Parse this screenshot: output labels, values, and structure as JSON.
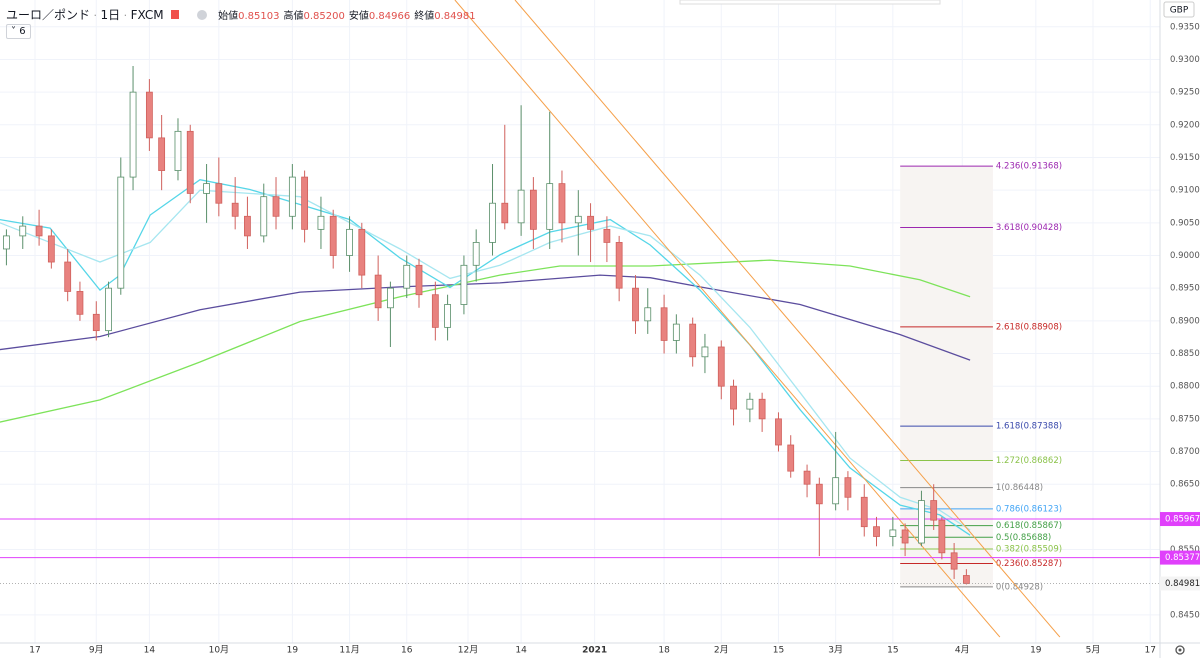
{
  "header": {
    "symbol": "ユーロ／ポンド",
    "interval": "1日",
    "exchange": "FXCM",
    "ohlc": [
      {
        "label": "始値",
        "value": "0.85103"
      },
      {
        "label": "高値",
        "value": "0.85200"
      },
      {
        "label": "安値",
        "value": "0.84966"
      },
      {
        "label": "終値",
        "value": "0.84981"
      }
    ],
    "indicators_count": "6"
  },
  "chart_data": {
    "type": "candlestick",
    "currency": "GBP",
    "xlim": [
      -8.57,
      275.4
    ],
    "ylim": [
      0.8407,
      0.9391
    ],
    "xticks": [
      {
        "value": 0,
        "label": "17"
      },
      {
        "value": 15,
        "label": "9月"
      },
      {
        "value": 28,
        "label": "14"
      },
      {
        "value": 45,
        "label": "10月"
      },
      {
        "value": 63,
        "label": "19"
      },
      {
        "value": 77,
        "label": "11月"
      },
      {
        "value": 91,
        "label": "16"
      },
      {
        "value": 106,
        "label": "12月"
      },
      {
        "value": 119,
        "label": "14"
      },
      {
        "value": 137,
        "label": "2021"
      },
      {
        "value": 154,
        "label": "18"
      },
      {
        "value": 168,
        "label": "2月"
      },
      {
        "value": 182,
        "label": "15"
      },
      {
        "value": 196,
        "label": "3月"
      },
      {
        "value": 210,
        "label": "15"
      },
      {
        "value": 227,
        "label": "4月"
      },
      {
        "value": 245,
        "label": "19"
      },
      {
        "value": 259,
        "label": "5月"
      },
      {
        "value": 273,
        "label": "17"
      }
    ],
    "yticks": [
      {
        "value": 0.935,
        "label": "0.93500"
      },
      {
        "value": 0.93,
        "label": "0.93000"
      },
      {
        "value": 0.925,
        "label": "0.92500"
      },
      {
        "value": 0.92,
        "label": "0.92000"
      },
      {
        "value": 0.915,
        "label": "0.91500"
      },
      {
        "value": 0.91,
        "label": "0.91000"
      },
      {
        "value": 0.905,
        "label": "0.90500"
      },
      {
        "value": 0.9,
        "label": "0.90000"
      },
      {
        "value": 0.895,
        "label": "0.89500"
      },
      {
        "value": 0.89,
        "label": "0.89000"
      },
      {
        "value": 0.885,
        "label": "0.88500"
      },
      {
        "value": 0.88,
        "label": "0.88000"
      },
      {
        "value": 0.875,
        "label": "0.87500"
      },
      {
        "value": 0.87,
        "label": "0.87000"
      },
      {
        "value": 0.865,
        "label": "0.86500"
      },
      {
        "value": 0.855,
        "label": "0.85500"
      },
      {
        "value": 0.845,
        "label": "0.84500"
      }
    ],
    "up_color": "#ffffff",
    "up_border": "#5a8f6a",
    "down_color": "#e8827f",
    "down_border": "#d0605c",
    "candles": {
      "x": [
        -7,
        -3,
        1,
        4,
        8,
        11,
        15,
        18,
        21,
        24,
        28,
        31,
        35,
        38,
        42,
        45,
        49,
        52,
        56,
        59,
        63,
        66,
        70,
        73,
        77,
        80,
        84,
        87,
        91,
        94,
        98,
        101,
        105,
        108,
        112,
        115,
        119,
        122,
        126,
        129,
        133,
        136,
        140,
        143,
        147,
        150,
        154,
        157,
        161,
        164,
        168,
        171,
        175,
        178,
        182,
        185,
        189,
        192,
        196,
        199,
        203,
        206,
        210,
        213,
        217,
        220,
        222,
        225,
        228
      ],
      "open": [
        0.901,
        0.903,
        0.9045,
        0.903,
        0.899,
        0.8945,
        0.891,
        0.8885,
        0.895,
        0.912,
        0.925,
        0.918,
        0.913,
        0.919,
        0.9095,
        0.911,
        0.908,
        0.906,
        0.903,
        0.909,
        0.906,
        0.912,
        0.904,
        0.906,
        0.9,
        0.904,
        0.897,
        0.892,
        0.895,
        0.8985,
        0.894,
        0.889,
        0.8925,
        0.8985,
        0.902,
        0.908,
        0.905,
        0.91,
        0.904,
        0.911,
        0.905,
        0.906,
        0.904,
        0.902,
        0.895,
        0.89,
        0.892,
        0.887,
        0.8895,
        0.8845,
        0.886,
        0.88,
        0.8765,
        0.878,
        0.875,
        0.871,
        0.867,
        0.865,
        0.862,
        0.866,
        0.863,
        0.8585,
        0.857,
        0.858,
        0.856,
        0.8625,
        0.8595,
        0.8545,
        0.85103
      ],
      "high": [
        0.904,
        0.906,
        0.907,
        0.904,
        0.901,
        0.896,
        0.893,
        0.896,
        0.915,
        0.929,
        0.927,
        0.9215,
        0.921,
        0.92,
        0.914,
        0.915,
        0.912,
        0.909,
        0.911,
        0.912,
        0.914,
        0.913,
        0.909,
        0.907,
        0.906,
        0.905,
        0.9,
        0.896,
        0.9,
        0.8995,
        0.896,
        0.894,
        0.9,
        0.904,
        0.914,
        0.92,
        0.923,
        0.912,
        0.922,
        0.913,
        0.91,
        0.908,
        0.906,
        0.903,
        0.897,
        0.895,
        0.894,
        0.891,
        0.8905,
        0.888,
        0.887,
        0.881,
        0.879,
        0.879,
        0.876,
        0.8725,
        0.868,
        0.866,
        0.873,
        0.867,
        0.865,
        0.86,
        0.86,
        0.859,
        0.864,
        0.865,
        0.86,
        0.856,
        0.852
      ],
      "low": [
        0.8985,
        0.901,
        0.9015,
        0.898,
        0.893,
        0.89,
        0.887,
        0.8875,
        0.894,
        0.91,
        0.916,
        0.91,
        0.9115,
        0.908,
        0.905,
        0.906,
        0.904,
        0.901,
        0.902,
        0.904,
        0.904,
        0.902,
        0.901,
        0.898,
        0.8975,
        0.895,
        0.89,
        0.886,
        0.8935,
        0.892,
        0.887,
        0.887,
        0.891,
        0.896,
        0.9,
        0.904,
        0.903,
        0.901,
        0.901,
        0.902,
        0.9,
        0.899,
        0.899,
        0.893,
        0.888,
        0.888,
        0.885,
        0.885,
        0.883,
        0.882,
        0.878,
        0.874,
        0.8745,
        0.873,
        0.87,
        0.866,
        0.863,
        0.854,
        0.861,
        0.861,
        0.857,
        0.8555,
        0.8555,
        0.854,
        0.8555,
        0.858,
        0.8535,
        0.8505,
        0.84966
      ],
      "close": [
        0.903,
        0.9045,
        0.903,
        0.899,
        0.8945,
        0.891,
        0.8885,
        0.895,
        0.912,
        0.925,
        0.918,
        0.913,
        0.919,
        0.9095,
        0.911,
        0.908,
        0.906,
        0.903,
        0.909,
        0.906,
        0.912,
        0.904,
        0.906,
        0.9,
        0.904,
        0.897,
        0.892,
        0.895,
        0.8985,
        0.894,
        0.889,
        0.8925,
        0.8985,
        0.902,
        0.908,
        0.905,
        0.91,
        0.904,
        0.911,
        0.905,
        0.906,
        0.904,
        0.902,
        0.895,
        0.89,
        0.892,
        0.887,
        0.8895,
        0.8845,
        0.886,
        0.88,
        0.8765,
        0.878,
        0.875,
        0.871,
        0.867,
        0.865,
        0.862,
        0.866,
        0.863,
        0.8585,
        0.857,
        0.858,
        0.856,
        0.8625,
        0.8595,
        0.8545,
        0.852,
        0.84981
      ]
    },
    "moving_averages": [
      {
        "color": "#5b4d9e",
        "x": [
          -8.6,
          15.9,
          40.4,
          64.9,
          89.4,
          113.8,
          138.3,
          150.6,
          162.8,
          187.3,
          211.8,
          228.9
        ],
        "values": [
          0.8856,
          0.8876,
          0.8917,
          0.8944,
          0.8952,
          0.8958,
          0.897,
          0.8966,
          0.8952,
          0.8925,
          0.8879,
          0.884
        ]
      },
      {
        "color": "#7de35a",
        "x": [
          -8.6,
          15.9,
          40.4,
          64.9,
          89.4,
          113.8,
          128.5,
          150.6,
          179.9,
          199.5,
          216.6,
          228.9
        ],
        "values": [
          0.8745,
          0.8779,
          0.8837,
          0.8899,
          0.8937,
          0.897,
          0.8984,
          0.8984,
          0.8993,
          0.8984,
          0.8963,
          0.8937
        ]
      },
      {
        "color": "#55d6e8",
        "x": [
          -8.6,
          3.7,
          15.9,
          20.8,
          28.2,
          40.4,
          52.6,
          64.9,
          77.1,
          89.4,
          101.6,
          113.8,
          126.1,
          140.8,
          150.6,
          162.8,
          175,
          187.3,
          199.5,
          211.8,
          221.5,
          228.9
        ],
        "values": [
          0.9055,
          0.9042,
          0.8947,
          0.897,
          0.9062,
          0.9116,
          0.9101,
          0.9078,
          0.9055,
          0.8996,
          0.8951,
          0.9001,
          0.9036,
          0.9055,
          0.9016,
          0.8947,
          0.8863,
          0.8764,
          0.8675,
          0.8618,
          0.8603,
          0.8572
        ]
      },
      {
        "color": "#a6e6f0",
        "x": [
          -8.6,
          15.9,
          28.2,
          40.4,
          64.9,
          89.4,
          101.6,
          113.8,
          126.1,
          140.8,
          150.6,
          162.8,
          175,
          187.3,
          199.5,
          211.8,
          221.5,
          228.9
        ],
        "values": [
          0.905,
          0.899,
          0.902,
          0.91,
          0.909,
          0.901,
          0.8965,
          0.8985,
          0.902,
          0.9045,
          0.903,
          0.897,
          0.889,
          0.879,
          0.869,
          0.863,
          0.861,
          0.858
        ]
      }
    ],
    "trend_lines": [
      {
        "color": "#f5a04a",
        "x": [
          102.8,
          236.2
        ],
        "values": [
          0.9391,
          0.8416
        ]
      },
      {
        "color": "#f5a04a",
        "x": [
          117.5,
          250.9
        ],
        "values": [
          0.9391,
          0.8416
        ]
      }
    ],
    "horizontal_lines": [
      {
        "value": 0.85967,
        "label": "0.85967",
        "color": "#e040fb"
      },
      {
        "value": 0.85377,
        "label": "0.85377",
        "color": "#e040fb"
      }
    ],
    "last_price": {
      "value": 0.84981,
      "label": "0.84981"
    },
    "fib": {
      "x": [
        211.8,
        234.5
      ],
      "fill": "#f7f4f2",
      "levels": [
        {
          "value": 0.91368,
          "label": "4.236(0.91368)",
          "color": "#9c27b0"
        },
        {
          "value": 0.90428,
          "label": "3.618(0.90428)",
          "color": "#9c27b0"
        },
        {
          "value": 0.88908,
          "label": "2.618(0.88908)",
          "color": "#c62828"
        },
        {
          "value": 0.87388,
          "label": "1.618(0.87388)",
          "color": "#3949ab"
        },
        {
          "value": 0.86862,
          "label": "1.272(0.86862)",
          "color": "#8bc34a"
        },
        {
          "value": 0.86448,
          "label": "1(0.86448)",
          "color": "#888888"
        },
        {
          "value": 0.86123,
          "label": "0.786(0.86123)",
          "color": "#42a5f5"
        },
        {
          "value": 0.85867,
          "label": "0.618(0.85867)",
          "color": "#43a047"
        },
        {
          "value": 0.85688,
          "label": "0.5(0.85688)",
          "color": "#43a047"
        },
        {
          "value": 0.85509,
          "label": "0.382(0.85509)",
          "color": "#8bc34a"
        },
        {
          "value": 0.85287,
          "label": "0.236(0.85287)",
          "color": "#c62828"
        },
        {
          "value": 0.84928,
          "label": "0(0.84928)",
          "color": "#888888"
        }
      ]
    }
  }
}
